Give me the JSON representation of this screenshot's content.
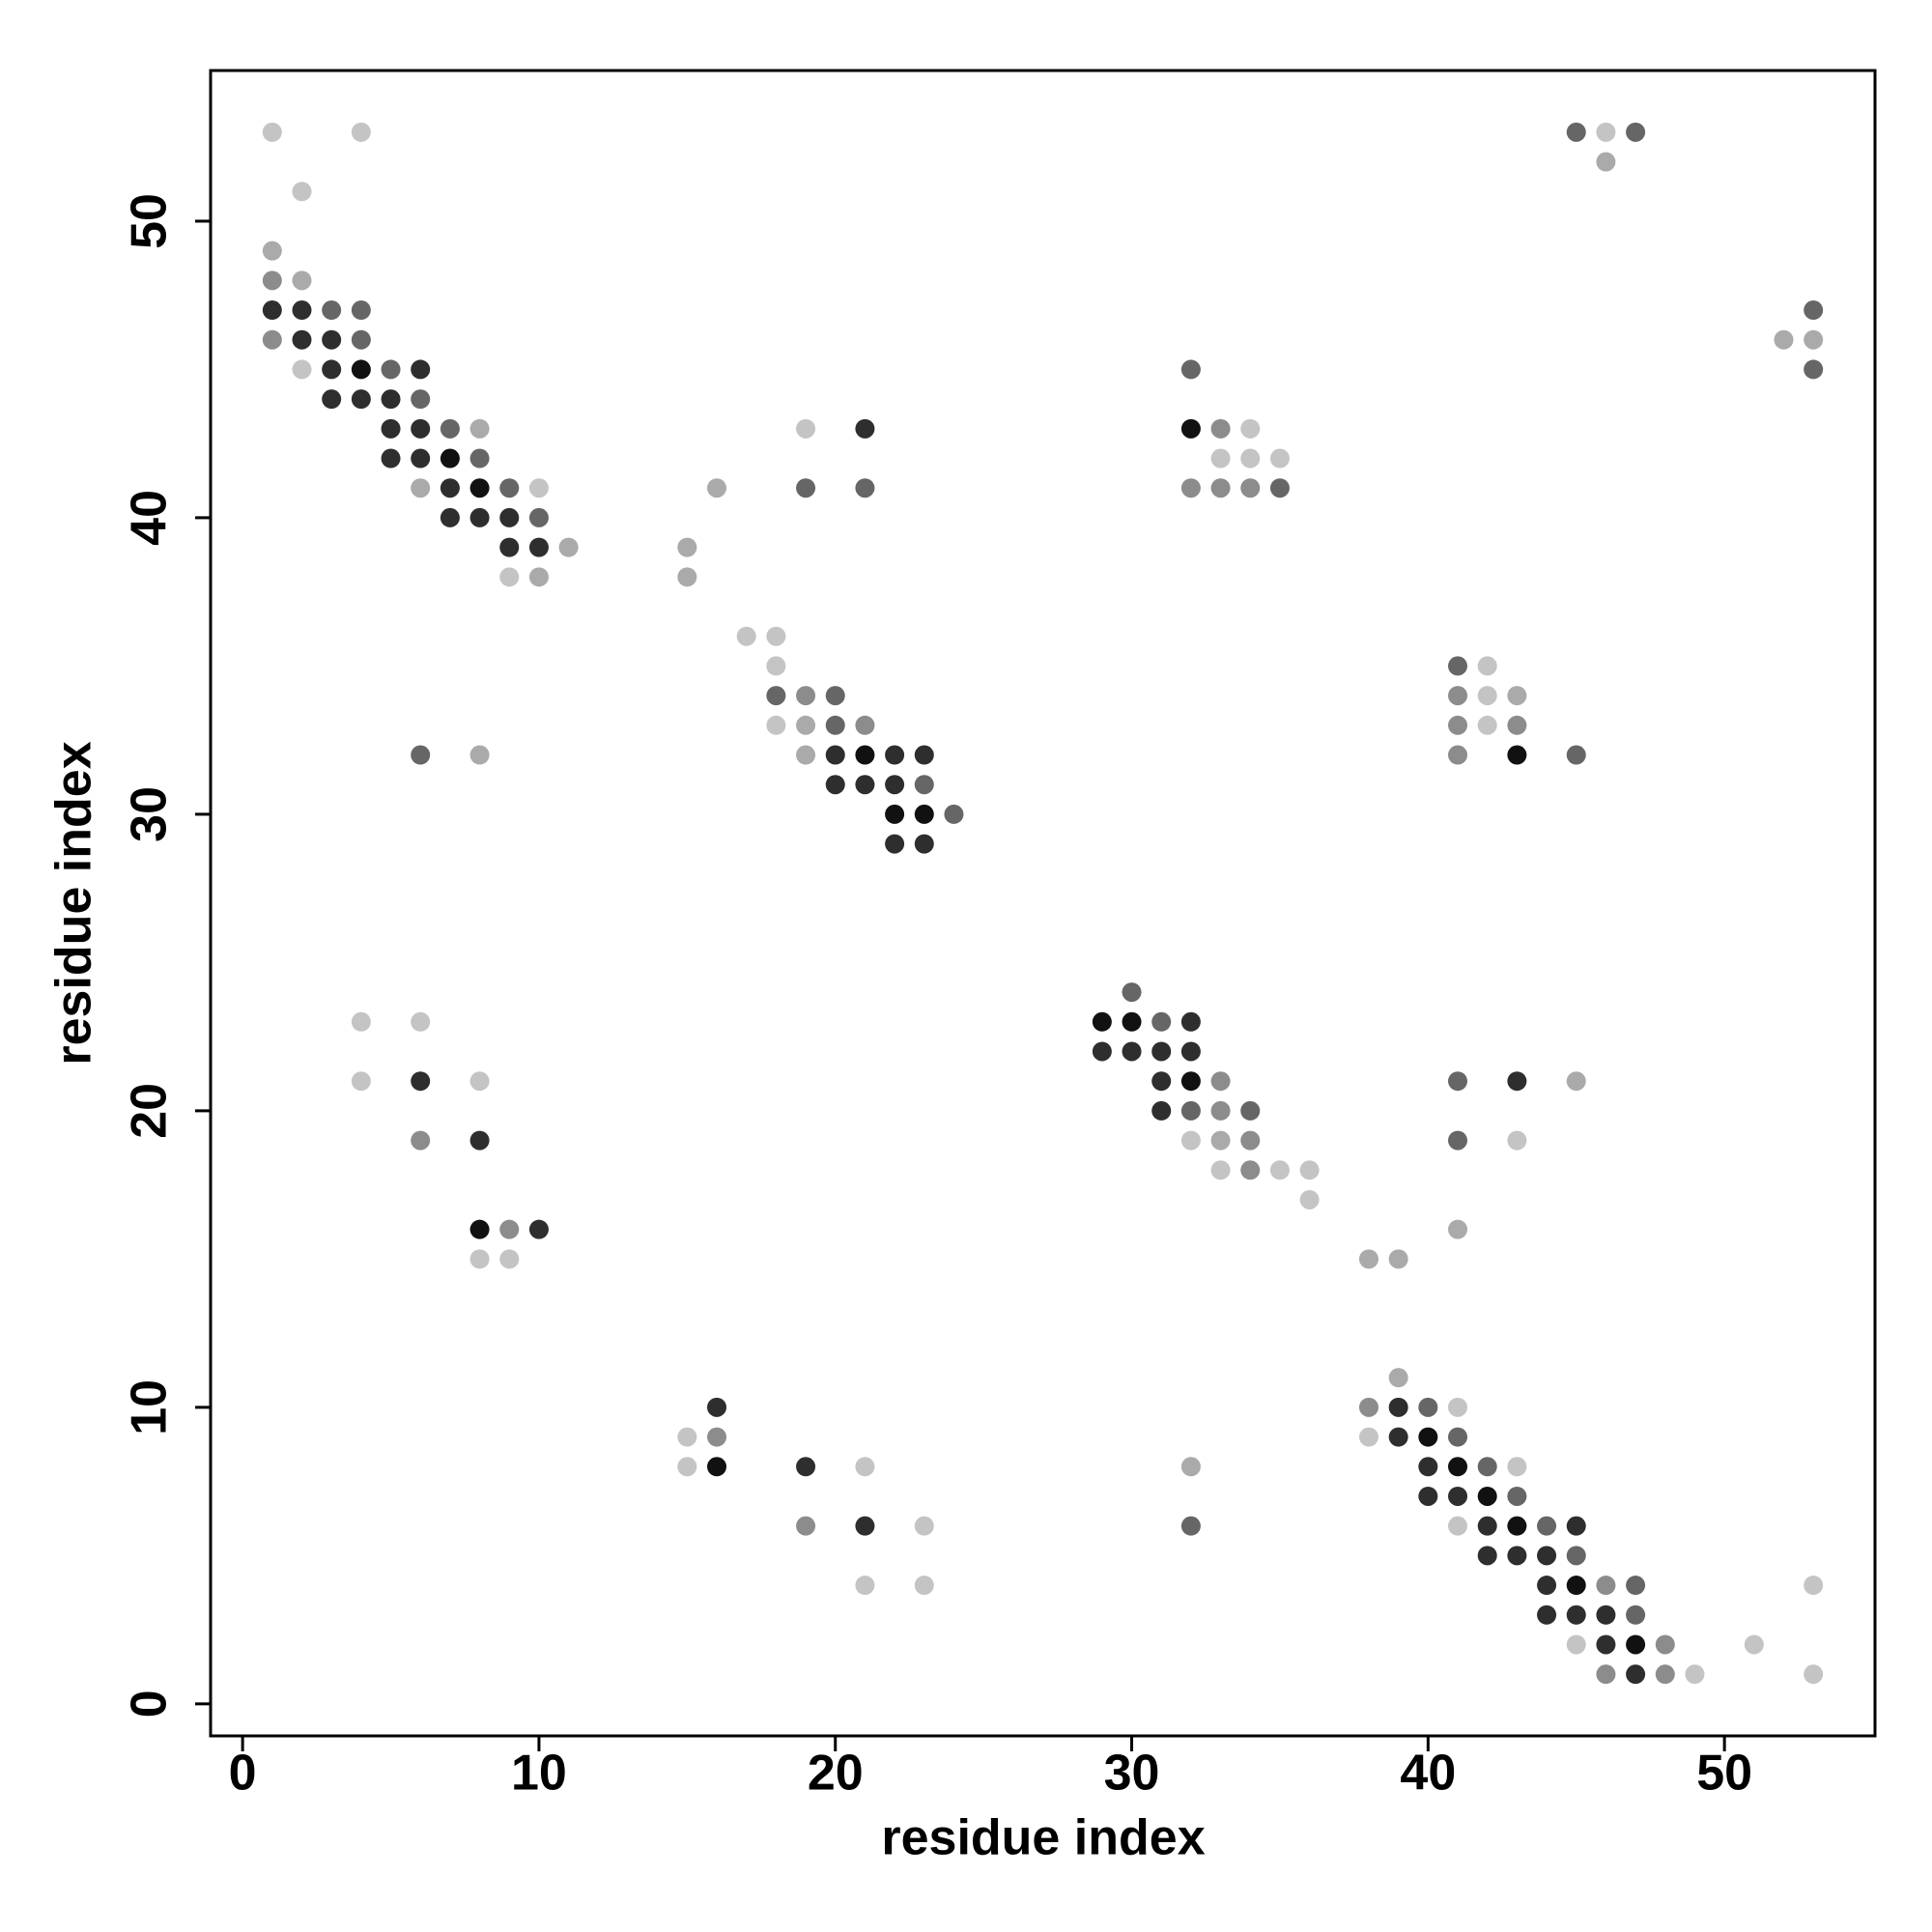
{
  "chart_data": {
    "type": "scatter",
    "xlabel": "residue index",
    "ylabel": "residue index",
    "xlim": [
      -1.08,
      55.08
    ],
    "ylim": [
      -1.08,
      55.08
    ],
    "xticks": [
      0,
      10,
      20,
      30,
      40,
      50
    ],
    "yticks": [
      0,
      10,
      20,
      30,
      40,
      50
    ],
    "series": [
      {
        "color": "#111111",
        "x": [
          4,
          32,
          7,
          8,
          21,
          43,
          22,
          23,
          29,
          30,
          32,
          8,
          40,
          16,
          41,
          42,
          43,
          45,
          47
        ],
        "y": [
          45,
          43,
          42,
          41,
          32,
          32,
          30,
          30,
          23,
          23,
          21,
          16,
          9,
          8,
          8,
          7,
          6,
          4,
          2
        ]
      },
      {
        "color": "#2e2e2e",
        "x": [
          1,
          2,
          2,
          3,
          3,
          6,
          3,
          4,
          5,
          5,
          6,
          21,
          5,
          6,
          7,
          7,
          8,
          9,
          9,
          10,
          20,
          22,
          23,
          20,
          21,
          22,
          22,
          23,
          32,
          29,
          30,
          31,
          32,
          6,
          31,
          43,
          31,
          8,
          10,
          16,
          39,
          39,
          19,
          40,
          40,
          41,
          21,
          42,
          45,
          42,
          43,
          44,
          44,
          44,
          45,
          46,
          46,
          47
        ],
        "y": [
          47,
          47,
          46,
          46,
          45,
          45,
          44,
          44,
          44,
          43,
          43,
          43,
          42,
          42,
          41,
          40,
          40,
          40,
          39,
          39,
          32,
          32,
          32,
          31,
          31,
          31,
          29,
          29,
          23,
          22,
          22,
          22,
          22,
          21,
          21,
          21,
          20,
          19,
          16,
          10,
          10,
          9,
          8,
          8,
          7,
          7,
          6,
          6,
          6,
          5,
          5,
          5,
          4,
          3,
          3,
          3,
          2,
          1
        ]
      },
      {
        "color": "#666666",
        "x": [
          45,
          47,
          3,
          53,
          5,
          32,
          53,
          6,
          7,
          8,
          9,
          35,
          10,
          41,
          20,
          20,
          6,
          23,
          24,
          30,
          31,
          41,
          32,
          34,
          41,
          40,
          41,
          42,
          43,
          32,
          44,
          45,
          47,
          47,
          4,
          4,
          19,
          21,
          18,
          45
        ],
        "y": [
          53,
          53,
          47,
          47,
          45,
          45,
          45,
          44,
          43,
          42,
          41,
          41,
          40,
          35,
          34,
          33,
          32,
          31,
          30,
          24,
          23,
          21,
          20,
          20,
          19,
          10,
          9,
          8,
          7,
          6,
          6,
          5,
          4,
          3,
          47,
          46,
          41,
          41,
          34,
          32
        ]
      },
      {
        "color": "#8c8c8c",
        "x": [
          1,
          1,
          33,
          32,
          33,
          34,
          41,
          19,
          21,
          41,
          43,
          41,
          33,
          33,
          6,
          34,
          34,
          9,
          38,
          16,
          46,
          48,
          46,
          48,
          19
        ],
        "y": [
          48,
          46,
          43,
          41,
          41,
          41,
          34,
          34,
          33,
          33,
          33,
          32,
          21,
          20,
          19,
          19,
          18,
          16,
          10,
          9,
          4,
          2,
          1,
          1,
          6
        ]
      },
      {
        "color": "#aaaaaa",
        "x": [
          46,
          1,
          2,
          52,
          53,
          8,
          6,
          16,
          11,
          15,
          10,
          15,
          43,
          19,
          8,
          19,
          45,
          33,
          41,
          38,
          39,
          39,
          32
        ],
        "y": [
          52,
          49,
          48,
          46,
          46,
          43,
          41,
          41,
          39,
          39,
          38,
          38,
          34,
          33,
          32,
          32,
          21,
          19,
          16,
          15,
          15,
          11,
          8
        ]
      },
      {
        "color": "#c4c4c4",
        "x": [
          1,
          4,
          46,
          2,
          2,
          19,
          34,
          33,
          34,
          35,
          10,
          9,
          17,
          18,
          18,
          42,
          42,
          18,
          42,
          4,
          6,
          4,
          8,
          32,
          43,
          33,
          35,
          36,
          36,
          8,
          9,
          41,
          15,
          38,
          15,
          21,
          43,
          23,
          41,
          21,
          23,
          53,
          45,
          51,
          49,
          53
        ],
        "y": [
          53,
          53,
          53,
          51,
          45,
          43,
          43,
          42,
          42,
          42,
          41,
          38,
          36,
          36,
          35,
          35,
          34,
          33,
          33,
          23,
          23,
          21,
          21,
          19,
          19,
          18,
          18,
          18,
          17,
          15,
          15,
          10,
          9,
          9,
          8,
          8,
          8,
          6,
          6,
          4,
          4,
          4,
          2,
          2,
          1,
          1
        ]
      }
    ]
  }
}
